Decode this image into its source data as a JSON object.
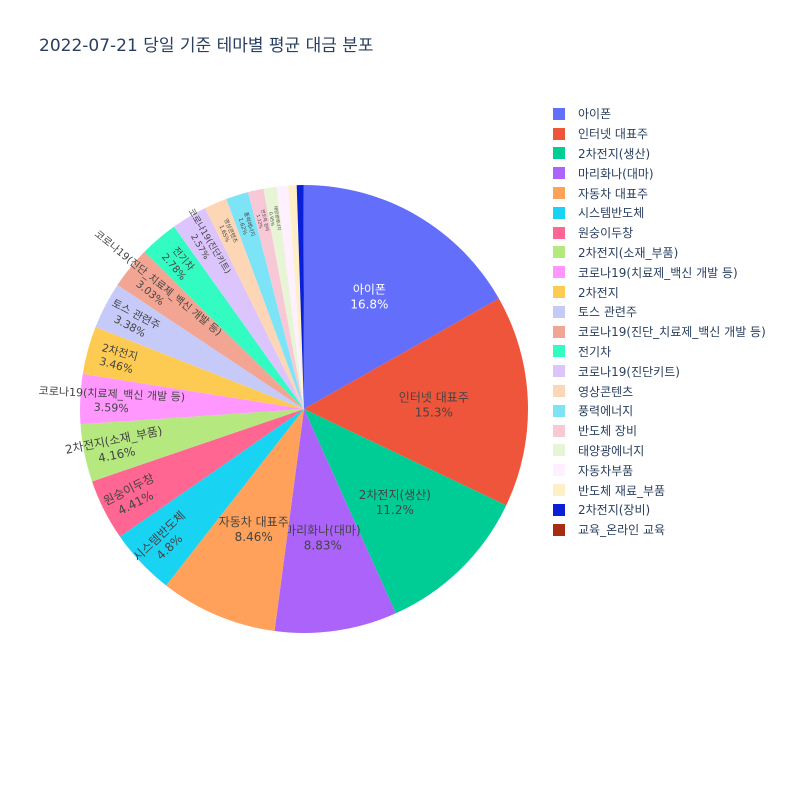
{
  "chart_data": {
    "type": "pie",
    "title": "2022-07-21 당일 기준 테마별 평균 대금 분포",
    "legend_position": "right",
    "slices": [
      {
        "label": "아이폰",
        "percent": 16.8,
        "percent_text": "16.8%",
        "color": "#636efa",
        "text_color": "#ffffff"
      },
      {
        "label": "인터넷 대표주",
        "percent": 15.3,
        "percent_text": "15.3%",
        "color": "#EF553B",
        "text_color": "#444444"
      },
      {
        "label": "2차전지(생산)",
        "percent": 11.2,
        "percent_text": "11.2%",
        "color": "#00cc96",
        "text_color": "#444444"
      },
      {
        "label": "마리화나(대마)",
        "percent": 8.83,
        "percent_text": "8.83%",
        "color": "#ab63fa",
        "text_color": "#444444"
      },
      {
        "label": "자동차 대표주",
        "percent": 8.46,
        "percent_text": "8.46%",
        "color": "#FFA15A",
        "text_color": "#444444"
      },
      {
        "label": "시스템반도체",
        "percent": 4.8,
        "percent_text": "4.8%",
        "color": "#19d3f3",
        "text_color": "#444444"
      },
      {
        "label": "원숭이두창",
        "percent": 4.41,
        "percent_text": "4.41%",
        "color": "#FF6692",
        "text_color": "#444444"
      },
      {
        "label": "2차전지(소재_부품)",
        "percent": 4.16,
        "percent_text": "4.16%",
        "color": "#B6E880",
        "text_color": "#444444"
      },
      {
        "label": "코로나19(치료제_백신 개발 등)",
        "percent": 3.59,
        "percent_text": "3.59%",
        "color": "#FF97FF",
        "text_color": "#444444"
      },
      {
        "label": "2차전지",
        "percent": 3.46,
        "percent_text": "3.46%",
        "color": "#FECB52",
        "text_color": "#444444"
      },
      {
        "label": "토스 관련주",
        "percent": 3.38,
        "percent_text": "3.38%",
        "color": "#c6caf9",
        "text_color": "#444444"
      },
      {
        "label": "코로나19(진단_치료제_백신 개발 등)",
        "percent": 3.03,
        "percent_text": "3.03%",
        "color": "#f2a592",
        "text_color": "#444444"
      },
      {
        "label": "전기차",
        "percent": 2.78,
        "percent_text": "2.78%",
        "color": "#33fcc2",
        "text_color": "#444444"
      },
      {
        "label": "코로나19(진단키트)",
        "percent": 2.57,
        "percent_text": "2.57%",
        "color": "#dcc4fc",
        "text_color": "#444444"
      },
      {
        "label": "영상콘텐츠",
        "percent": 1.65,
        "percent_text": "1.65%",
        "color": "#fdd6b6",
        "text_color": "#444444"
      },
      {
        "label": "풍력에너지",
        "percent": 1.62,
        "percent_text": "1.62%",
        "color": "#7de3f6",
        "text_color": "#444444"
      },
      {
        "label": "반도체 장비",
        "percent": 1.12,
        "percent_text": "1.12%",
        "color": "#f9c8d6",
        "text_color": "#444444"
      },
      {
        "label": "태양광에너지",
        "percent": 0.95,
        "percent_text": "0.95%",
        "color": "#e7f5d6",
        "text_color": "#444444"
      },
      {
        "label": "자동차부품",
        "percent": 0.83,
        "percent_text": "0.83%",
        "color": "#fff0ff",
        "text_color": "#444444"
      },
      {
        "label": "반도체 재료_부품",
        "percent": 0.6,
        "percent_text": "0.6%",
        "color": "#ffefc7",
        "text_color": "#444444"
      },
      {
        "label": "2차전지(장비)",
        "percent": 0.45,
        "percent_text": "0.45%",
        "color": "#0a1fd8",
        "text_color": "#444444"
      },
      {
        "label": "교육_온라인 교육",
        "percent": 0.07,
        "percent_text": "0.07%",
        "color": "#a62c14",
        "text_color": "#444444"
      }
    ]
  }
}
